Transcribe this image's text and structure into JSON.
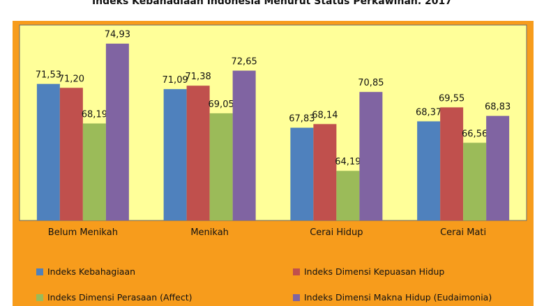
{
  "chart_data": {
    "type": "bar",
    "title": "Indeks Kebahagiaan Indonesia Menurut Status Perkawinan, 2017",
    "categories": [
      "Belum Menikah",
      "Menikah",
      "Cerai Hidup",
      "Cerai Mati"
    ],
    "series": [
      {
        "name": "Indeks Kebahagiaan",
        "color": "#4f81bd",
        "values": [
          71.53,
          71.09,
          67.83,
          68.37
        ],
        "labels": [
          "71,53",
          "71,09",
          "67,83",
          "68,37"
        ]
      },
      {
        "name": "Indeks Dimensi Kepuasan Hidup",
        "color": "#c0504d",
        "values": [
          71.2,
          71.38,
          68.14,
          69.55
        ],
        "labels": [
          "71,20",
          "71,38",
          "68,14",
          "69,55"
        ]
      },
      {
        "name": "Indeks Dimensi Perasaan (Affect)",
        "color": "#9bbb59",
        "values": [
          68.19,
          69.05,
          64.19,
          66.56
        ],
        "labels": [
          "68,19",
          "69,05",
          "64,19",
          "66,56"
        ]
      },
      {
        "name": "Indeks Dimensi Makna Hidup (Eudaimonia)",
        "color": "#8064a2",
        "values": [
          74.93,
          72.65,
          70.85,
          68.83
        ],
        "labels": [
          "74,93",
          "72,65",
          "70,85",
          "68,83"
        ]
      }
    ],
    "legend_position": "bottom",
    "plot_background": "#ffff99",
    "chart_background": "#f79c1c",
    "grid": false
  }
}
